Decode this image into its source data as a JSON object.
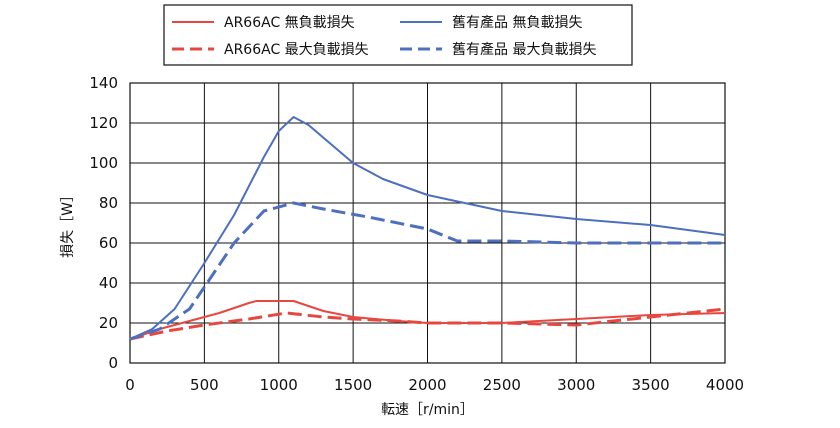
{
  "chart_data": {
    "type": "line",
    "title": "",
    "xlabel": "転速［r/min］",
    "ylabel": "損失［W］",
    "xlim": [
      0,
      4000
    ],
    "ylim": [
      0,
      140
    ],
    "xticks": [
      0,
      500,
      1000,
      1500,
      2000,
      2500,
      3000,
      3500,
      4000
    ],
    "yticks": [
      0,
      20,
      40,
      60,
      80,
      100,
      120,
      140
    ],
    "grid": true,
    "legend": "top-center",
    "series": [
      {
        "name": "AR66AC 無負載損失",
        "color": "#e8473f",
        "style": "solid",
        "points": [
          [
            0,
            12
          ],
          [
            200,
            17
          ],
          [
            400,
            21
          ],
          [
            600,
            25
          ],
          [
            800,
            30
          ],
          [
            850,
            31
          ],
          [
            1100,
            31
          ],
          [
            1300,
            26
          ],
          [
            1500,
            23
          ],
          [
            1800,
            21
          ],
          [
            2000,
            20
          ],
          [
            2500,
            20
          ],
          [
            3000,
            22
          ],
          [
            3500,
            24
          ],
          [
            4000,
            25
          ]
        ]
      },
      {
        "name": "AR66AC 最大負載損失",
        "color": "#e8473f",
        "style": "dashed",
        "points": [
          [
            0,
            12
          ],
          [
            250,
            16
          ],
          [
            500,
            19
          ],
          [
            800,
            22
          ],
          [
            1050,
            25
          ],
          [
            1300,
            23
          ],
          [
            1500,
            22
          ],
          [
            1800,
            21
          ],
          [
            2000,
            20
          ],
          [
            2500,
            20
          ],
          [
            3000,
            19
          ],
          [
            3500,
            23
          ],
          [
            4000,
            27
          ]
        ]
      },
      {
        "name": "舊有產品 無負載損失",
        "color": "#4d6fbf",
        "style": "solid",
        "points": [
          [
            0,
            12
          ],
          [
            150,
            17
          ],
          [
            300,
            27
          ],
          [
            500,
            50
          ],
          [
            700,
            74
          ],
          [
            900,
            103
          ],
          [
            1000,
            116
          ],
          [
            1100,
            123
          ],
          [
            1200,
            119
          ],
          [
            1500,
            100
          ],
          [
            1700,
            92
          ],
          [
            2000,
            84
          ],
          [
            2500,
            76
          ],
          [
            3000,
            72
          ],
          [
            3500,
            69
          ],
          [
            4000,
            64
          ]
        ]
      },
      {
        "name": "舊有產品 最大負載損失",
        "color": "#4d6fbf",
        "style": "dashed",
        "points": [
          [
            0,
            12
          ],
          [
            200,
            17
          ],
          [
            400,
            27
          ],
          [
            500,
            38
          ],
          [
            700,
            60
          ],
          [
            900,
            76
          ],
          [
            1100,
            80
          ],
          [
            1300,
            77
          ],
          [
            1600,
            73
          ],
          [
            2000,
            67
          ],
          [
            2200,
            61
          ],
          [
            2500,
            61
          ],
          [
            3000,
            60
          ],
          [
            3500,
            60
          ],
          [
            4000,
            60
          ]
        ]
      }
    ]
  }
}
